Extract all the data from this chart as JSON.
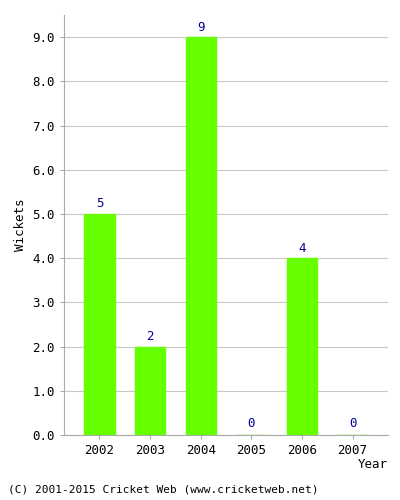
{
  "years": [
    2002,
    2003,
    2004,
    2005,
    2006,
    2007
  ],
  "wickets": [
    5,
    2,
    9,
    0,
    4,
    0
  ],
  "bar_color": "#66ff00",
  "bar_edgecolor": "#66ff00",
  "label_color": "#000099",
  "ylabel": "Wickets",
  "xlabel": "Year",
  "ylim": [
    0,
    9.5
  ],
  "yticks": [
    0.0,
    1.0,
    2.0,
    3.0,
    4.0,
    5.0,
    6.0,
    7.0,
    8.0,
    9.0
  ],
  "footer": "(C) 2001-2015 Cricket Web (www.cricketweb.net)",
  "background_color": "#ffffff",
  "grid_color": "#c8c8c8"
}
